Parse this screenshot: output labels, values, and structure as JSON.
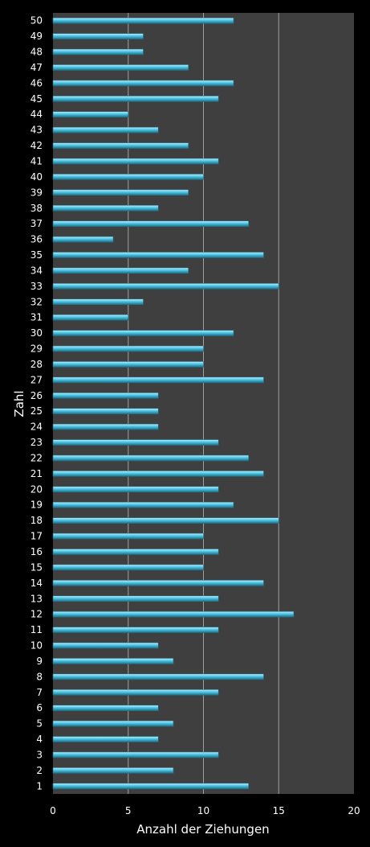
{
  "chart_data": {
    "type": "bar",
    "orientation": "horizontal",
    "categories": [
      "1",
      "2",
      "3",
      "4",
      "5",
      "6",
      "7",
      "8",
      "9",
      "10",
      "11",
      "12",
      "13",
      "14",
      "15",
      "16",
      "17",
      "18",
      "19",
      "20",
      "21",
      "22",
      "23",
      "24",
      "25",
      "26",
      "27",
      "28",
      "29",
      "30",
      "31",
      "32",
      "33",
      "34",
      "35",
      "36",
      "37",
      "38",
      "39",
      "40",
      "41",
      "42",
      "43",
      "44",
      "45",
      "46",
      "47",
      "48",
      "49",
      "50"
    ],
    "values": [
      13,
      8,
      11,
      7,
      8,
      7,
      11,
      14,
      8,
      7,
      11,
      16,
      11,
      14,
      10,
      11,
      10,
      15,
      12,
      11,
      14,
      13,
      11,
      7,
      7,
      7,
      14,
      10,
      10,
      12,
      5,
      6,
      15,
      9,
      14,
      4,
      13,
      7,
      9,
      10,
      11,
      9,
      7,
      5,
      11,
      12,
      9,
      6,
      6,
      12
    ],
    "xlabel": "Anzahl der Ziehungen",
    "ylabel": "Zahl",
    "xlim": [
      0,
      20
    ],
    "xticks": [
      "0",
      "5",
      "10",
      "15",
      "20"
    ],
    "grid": true,
    "colors": {
      "background": "#000000",
      "plot_area": "#3f3f3f",
      "bar": "#4cc4e4",
      "bar_highlight": "#bdeefa",
      "bar_shadow": "#1e6f86",
      "grid": "#a0a0a0",
      "text": "#ffffff"
    }
  }
}
